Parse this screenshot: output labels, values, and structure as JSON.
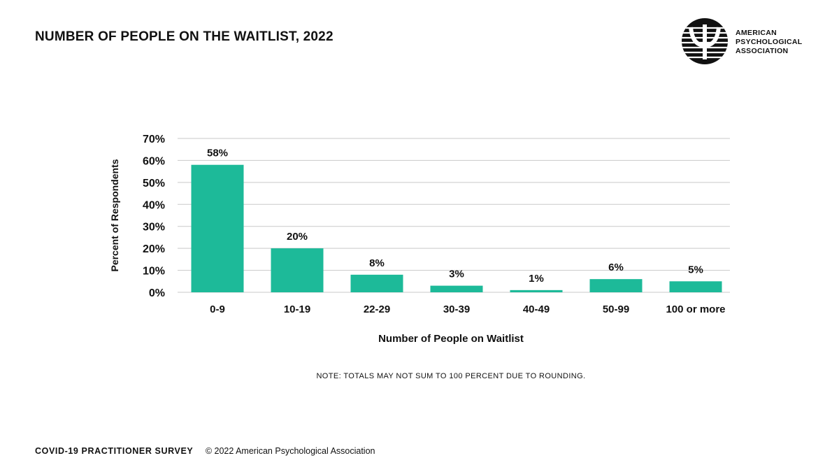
{
  "title": "NUMBER OF PEOPLE ON THE WAITLIST, 2022",
  "logo": {
    "lines": [
      "AMERICAN",
      "PSYCHOLOGICAL",
      "ASSOCIATION"
    ],
    "icon": "psi-logo-icon"
  },
  "note": "NOTE: TOTALS MAY NOT SUM TO 100 PERCENT DUE TO ROUNDING.",
  "footer": {
    "survey": "COVID-19 PRACTITIONER SURVEY",
    "copyright": "© 2022 American Psychological Association"
  },
  "colors": {
    "bar": "#1dba99",
    "grid": "#c9c9c9",
    "text": "#111111"
  },
  "chart_data": {
    "type": "bar",
    "title": "NUMBER OF PEOPLE ON THE WAITLIST, 2022",
    "xlabel": "Number of People on Waitlist",
    "ylabel": "Percent of Respondents",
    "categories": [
      "0-9",
      "10-19",
      "22-29",
      "30-39",
      "40-49",
      "50-99",
      "100 or more"
    ],
    "values": [
      58,
      20,
      8,
      3,
      1,
      6,
      5
    ],
    "value_labels": [
      "58%",
      "20%",
      "8%",
      "3%",
      "1%",
      "6%",
      "5%"
    ],
    "yticks": [
      "0%",
      "10%",
      "20%",
      "30%",
      "40%",
      "50%",
      "60%",
      "70%"
    ],
    "ylim": [
      0,
      70
    ],
    "grid": true,
    "legend": false
  }
}
